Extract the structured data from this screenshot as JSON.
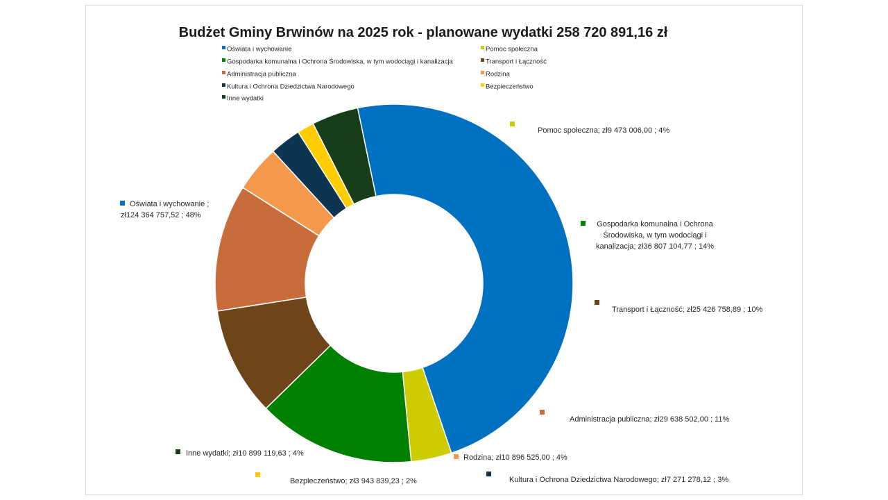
{
  "chart_data": {
    "type": "pie",
    "variant": "doughnut",
    "title": "Budżet Gminy Brwinów na 2025 rok - planowane wydatki 258 720 891,16 zł",
    "legend_position": "top",
    "series": [
      {
        "name": "Oświata i wychowanie",
        "value": 124364757.52,
        "value_text": "zł124 364 757,52",
        "percent": "48%",
        "color": "#0070c0"
      },
      {
        "name": "Pomoc społeczna",
        "value": 9473006.0,
        "value_text": "zł9 473 006,00",
        "percent": "4%",
        "color": "#cccc00"
      },
      {
        "name": "Gospodarka komunalna i Ochrona Środowiska, w tym wodociągi i kanalizacja",
        "value": 36807104.77,
        "value_text": "zł36 807 104,77",
        "percent": "14%",
        "color": "#008000"
      },
      {
        "name": "Transport i Łączność",
        "value": 25426758.89,
        "value_text": "zł25 426 758,89",
        "percent": "10%",
        "color": "#6e4519"
      },
      {
        "name": "Administracja publiczna",
        "value": 29638502.0,
        "value_text": "zł29 638 502,00",
        "percent": "11%",
        "color": "#c86c3c"
      },
      {
        "name": "Rodzina",
        "value": 10896525.0,
        "value_text": "zł10 896 525,00",
        "percent": "4%",
        "color": "#f4994b"
      },
      {
        "name": "Kultura i Ochrona Dziedzictwa Narodowego",
        "value": 7271278.12,
        "value_text": "zł7 271 278,12",
        "percent": "3%",
        "color": "#0d3550"
      },
      {
        "name": "Bezpieczeństwo",
        "value": 3943839.23,
        "value_text": "zł3 943 839,23",
        "percent": "2%",
        "color": "#ffcc00"
      },
      {
        "name": "Inne wydatki",
        "value": 10899119.63,
        "value_text": "zł10 899 119,63",
        "percent": "4%",
        "color": "#173d1a"
      }
    ],
    "legend": [
      "Oświata i wychowanie",
      "Pomoc społeczna",
      "Gospodarka komunalna i Ochrona Środowiska, w tym wodociągi i kanalizacja",
      "Transport i Łączność",
      "Administracja publiczna",
      "Rodzina",
      "Kultura i Ochrona Dziedzictwa Narodowego",
      "Bezpieczeństwo",
      "Inne wydatki"
    ],
    "data_labels": [
      {
        "lines": [
          "Oświata i wychowanie ;",
          "zł124 364 757,52 ; 48%"
        ]
      },
      {
        "lines": [
          "Pomoc społeczna;  zł9 473 006,00 ; 4%"
        ]
      },
      {
        "lines": [
          "Gospodarka komunalna i Ochrona",
          "Środowiska, w tym wodociągi i",
          "kanalizacja;  zł36 807 104,77 ; 14%"
        ]
      },
      {
        "lines": [
          "Transport i Łączność;  zł25 426 758,89 ; 10%"
        ]
      },
      {
        "lines": [
          "Administracja publiczna;  zł29 638 502,00 ; 11%"
        ]
      },
      {
        "lines": [
          "Rodzina;  zł10 896 525,00 ; 4%"
        ]
      },
      {
        "lines": [
          "Kultura i Ochrona Dziedzictwa Narodowego;  zł7 271 278,12 ; 3%"
        ]
      },
      {
        "lines": [
          "Bezpieczeństwo;  zł3 943 839,23 ; 2%"
        ]
      },
      {
        "lines": [
          "Inne wydatki; zł10 899 119,63 ; 4%"
        ]
      }
    ]
  }
}
